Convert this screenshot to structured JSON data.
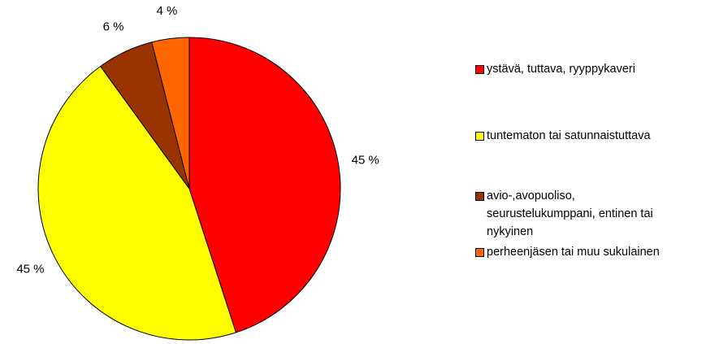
{
  "chart_data": {
    "type": "pie",
    "categories": [
      "ystävä, tuttava, ryyppykaveri",
      "tuntematon tai satunnaistuttava",
      "avio-,avopuoliso, seurustelukumppani, entinen tai nykyinen",
      "perheenjäsen tai muu sukulainen"
    ],
    "values": [
      45,
      45,
      6,
      4
    ],
    "value_labels": [
      "45 %",
      "45 %",
      "6 %",
      "4 %"
    ],
    "colors": [
      "#ff0000",
      "#ffff00",
      "#993300",
      "#ff6600"
    ],
    "legend": "right"
  }
}
